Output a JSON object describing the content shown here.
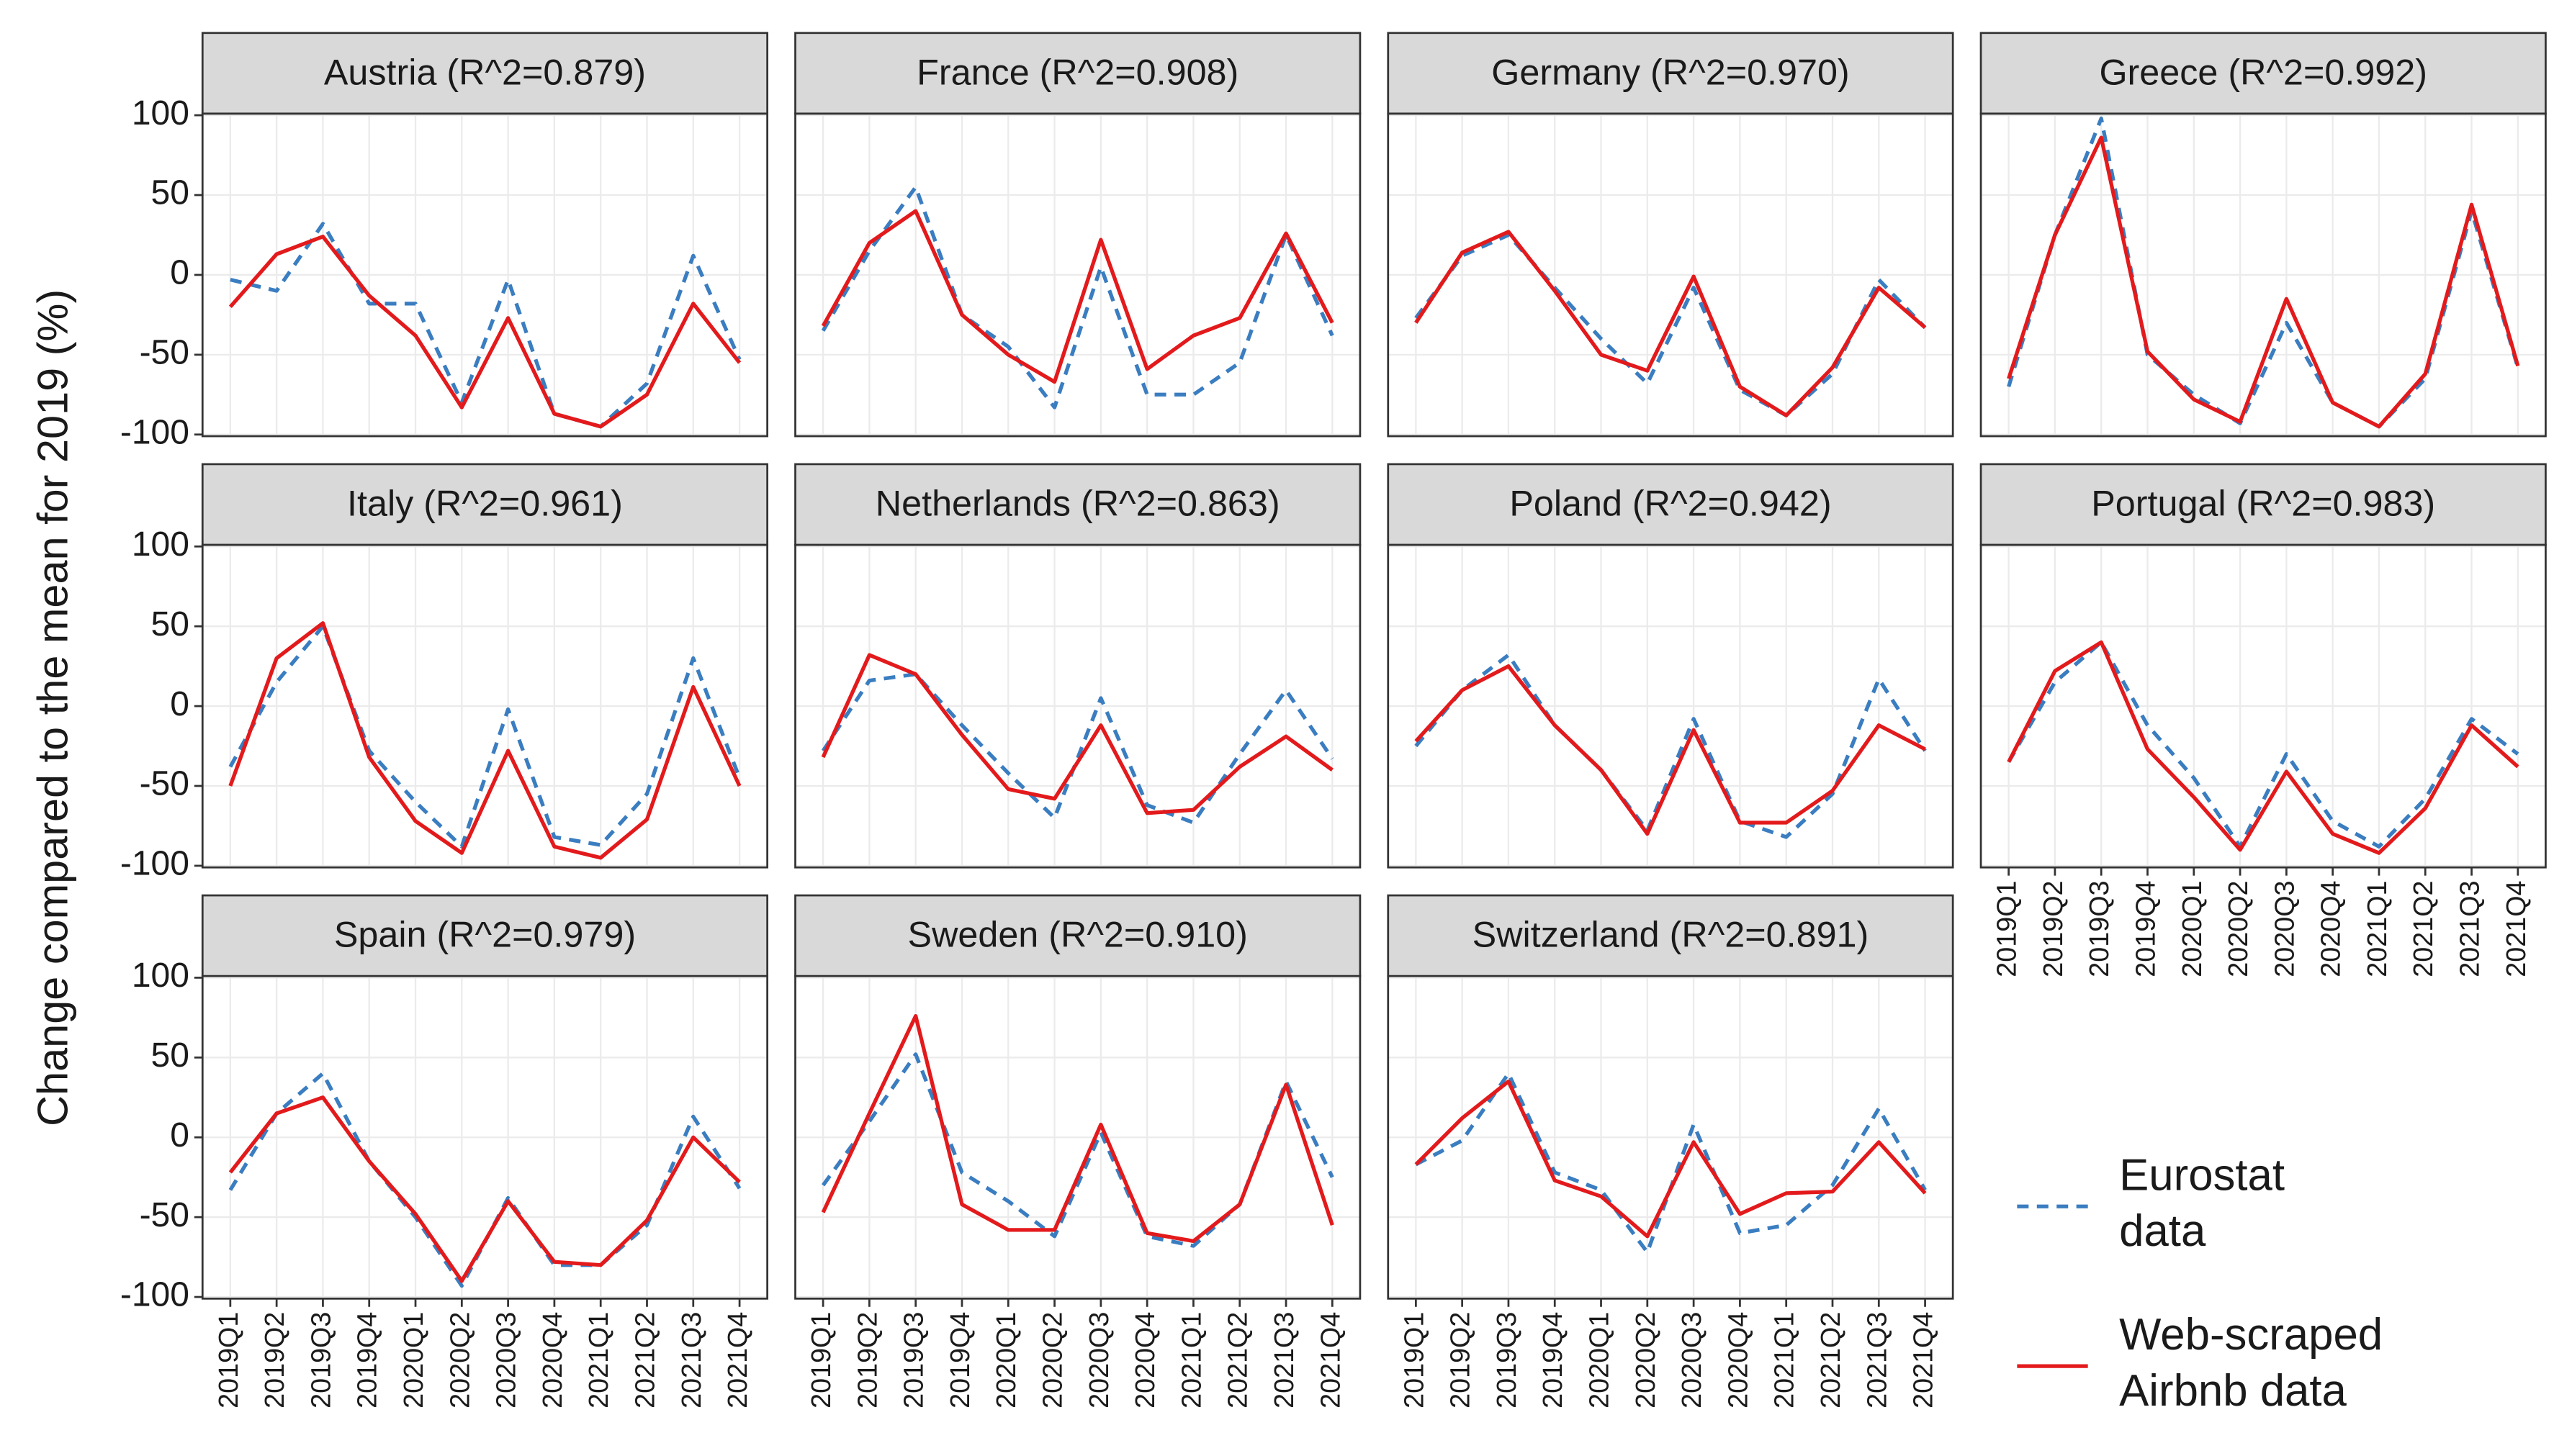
{
  "chart_data": {
    "type": "line",
    "y_label": "Change compared to the mean for 2019 (%)",
    "categories": [
      "2019Q1",
      "2019Q2",
      "2019Q3",
      "2019Q4",
      "2020Q1",
      "2020Q2",
      "2020Q3",
      "2020Q4",
      "2021Q1",
      "2021Q2",
      "2021Q3",
      "2021Q4"
    ],
    "ylim": [
      -100,
      100
    ],
    "yticks": [
      -100,
      -50,
      0,
      50,
      100
    ],
    "grid": true,
    "series": [
      {
        "name": "Eurostat data",
        "color": "#3a7dc0",
        "dash": true
      },
      {
        "name": "Web-scraped Airbnb data",
        "color": "#e31a1c",
        "dash": false
      }
    ],
    "panels": [
      {
        "title": "Austria (R^2=0.879)",
        "values": [
          [
            -3,
            -10,
            32,
            -18,
            -18,
            -80,
            -3,
            -87,
            -95,
            -68,
            12,
            -53
          ],
          [
            -20,
            13,
            24,
            -13,
            -38,
            -83,
            -27,
            -87,
            -95,
            -75,
            -18,
            -55
          ]
        ]
      },
      {
        "title": "France (R^2=0.908)",
        "values": [
          [
            -35,
            15,
            55,
            -25,
            -45,
            -83,
            5,
            -75,
            -75,
            -55,
            25,
            -38
          ],
          [
            -32,
            20,
            40,
            -25,
            -50,
            -67,
            22,
            -59,
            -38,
            -27,
            26,
            -30
          ]
        ]
      },
      {
        "title": "Germany (R^2=0.970)",
        "values": [
          [
            -27,
            12,
            25,
            -8,
            -40,
            -68,
            -8,
            -72,
            -88,
            -62,
            -3,
            -33
          ],
          [
            -30,
            14,
            27,
            -10,
            -50,
            -60,
            -1,
            -70,
            -88,
            -58,
            -8,
            -33
          ]
        ]
      },
      {
        "title": "Greece (R^2=0.992)",
        "values": [
          [
            -70,
            25,
            98,
            -50,
            -75,
            -93,
            -30,
            -80,
            -95,
            -65,
            40,
            -58
          ],
          [
            -65,
            25,
            86,
            -48,
            -78,
            -92,
            -15,
            -80,
            -95,
            -62,
            44,
            -57
          ]
        ]
      },
      {
        "title": "Italy (R^2=0.961)",
        "values": [
          [
            -38,
            15,
            50,
            -28,
            -60,
            -88,
            -2,
            -82,
            -87,
            -55,
            30,
            -45
          ],
          [
            -50,
            30,
            52,
            -32,
            -72,
            -92,
            -28,
            -88,
            -95,
            -71,
            12,
            -50
          ]
        ]
      },
      {
        "title": "Netherlands (R^2=0.863)",
        "values": [
          [
            -28,
            16,
            20,
            -12,
            -42,
            -70,
            5,
            -62,
            -73,
            -30,
            10,
            -33
          ],
          [
            -32,
            32,
            20,
            -18,
            -52,
            -58,
            -12,
            -67,
            -65,
            -38,
            -19,
            -40
          ]
        ]
      },
      {
        "title": "Poland (R^2=0.942)",
        "values": [
          [
            -25,
            10,
            32,
            -12,
            -40,
            -78,
            -8,
            -72,
            -82,
            -55,
            17,
            -28
          ],
          [
            -22,
            10,
            25,
            -12,
            -40,
            -80,
            -15,
            -73,
            -73,
            -53,
            -12,
            -27
          ]
        ]
      },
      {
        "title": "Portugal (R^2=0.983)",
        "values": [
          [
            -35,
            15,
            40,
            -12,
            -45,
            -88,
            -30,
            -72,
            -88,
            -58,
            -8,
            -30
          ],
          [
            -35,
            22,
            40,
            -27,
            -57,
            -90,
            -41,
            -80,
            -92,
            -64,
            -12,
            -38
          ]
        ]
      },
      {
        "title": "Spain (R^2=0.979)",
        "values": [
          [
            -33,
            15,
            40,
            -15,
            -50,
            -93,
            -38,
            -80,
            -80,
            -55,
            13,
            -32
          ],
          [
            -22,
            15,
            25,
            -15,
            -48,
            -90,
            -40,
            -78,
            -80,
            -52,
            0,
            -28
          ]
        ]
      },
      {
        "title": "Sweden (R^2=0.910)",
        "values": [
          [
            -30,
            10,
            52,
            -22,
            -40,
            -62,
            3,
            -62,
            -68,
            -42,
            35,
            -25
          ],
          [
            -47,
            15,
            76,
            -42,
            -58,
            -58,
            8,
            -60,
            -65,
            -42,
            33,
            -55
          ]
        ]
      },
      {
        "title": "Switzerland (R^2=0.891)",
        "values": [
          [
            -17,
            -2,
            40,
            -22,
            -33,
            -72,
            8,
            -60,
            -55,
            -30,
            18,
            -33
          ],
          [
            -17,
            12,
            35,
            -27,
            -37,
            -62,
            -3,
            -48,
            -35,
            -34,
            -3,
            -35
          ]
        ]
      }
    ]
  }
}
